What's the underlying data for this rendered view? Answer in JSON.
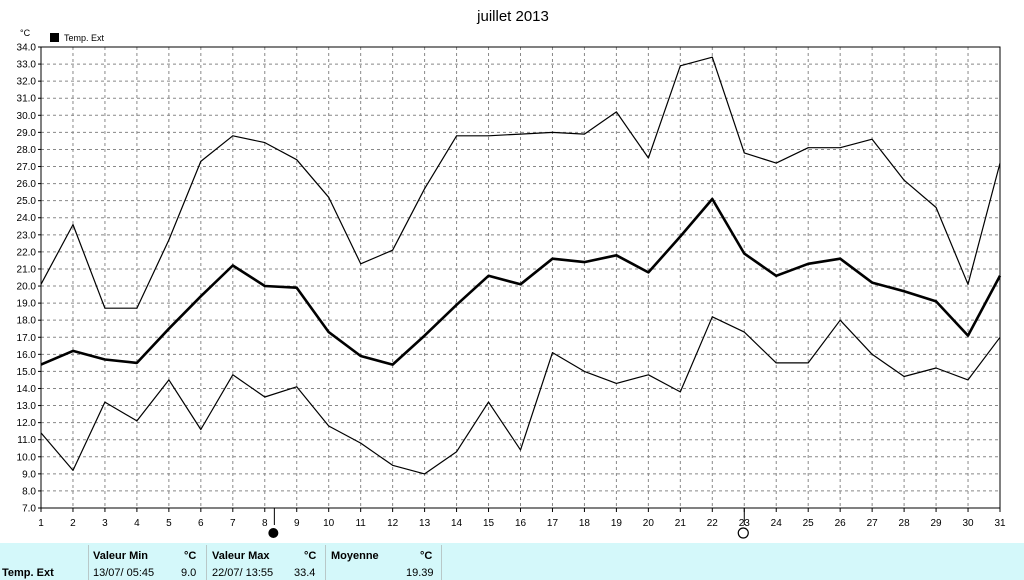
{
  "chart_data": {
    "type": "line",
    "title": "juillet 2013",
    "unit_label": "°C",
    "legend": {
      "label": "Temp. Ext",
      "color": "#000000"
    },
    "x": [
      1,
      2,
      3,
      4,
      5,
      6,
      7,
      8,
      9,
      10,
      11,
      12,
      13,
      14,
      15,
      16,
      17,
      18,
      19,
      20,
      21,
      22,
      23,
      24,
      25,
      26,
      27,
      28,
      29,
      30,
      31
    ],
    "ylim": [
      7.0,
      34.0
    ],
    "ytick_step": 1.0,
    "grid": true,
    "series": [
      {
        "role": "max",
        "stroke": 1.2,
        "values": [
          20.1,
          23.6,
          18.7,
          18.7,
          22.7,
          27.3,
          28.8,
          28.4,
          27.4,
          25.2,
          21.3,
          22.1,
          25.7,
          28.8,
          28.8,
          28.9,
          29.0,
          28.9,
          30.2,
          27.5,
          32.9,
          33.4,
          27.8,
          27.2,
          28.1,
          28.1,
          28.6,
          26.2,
          24.6,
          20.1,
          27.2
        ]
      },
      {
        "role": "mean",
        "stroke": 2.6,
        "values": [
          15.4,
          16.2,
          15.7,
          15.5,
          17.5,
          19.4,
          21.2,
          20.0,
          19.9,
          17.3,
          15.9,
          15.4,
          17.1,
          18.9,
          20.6,
          20.1,
          21.6,
          21.4,
          21.8,
          20.8,
          22.9,
          25.1,
          21.9,
          20.6,
          21.3,
          21.6,
          20.2,
          19.7,
          19.1,
          17.1,
          20.6
        ]
      },
      {
        "role": "min",
        "stroke": 1.2,
        "values": [
          11.4,
          9.2,
          13.2,
          12.1,
          14.5,
          11.6,
          14.8,
          13.5,
          14.1,
          11.8,
          10.8,
          9.5,
          9.0,
          10.3,
          13.2,
          10.4,
          16.1,
          15.0,
          14.3,
          14.8,
          13.8,
          18.2,
          17.3,
          15.5,
          15.5,
          18.0,
          16.0,
          14.7,
          15.2,
          14.5,
          17.0
        ]
      }
    ],
    "markers": [
      {
        "x": 8.3,
        "type": "filled-circle"
      },
      {
        "x": 23.0,
        "type": "open-circle"
      }
    ]
  },
  "stats": {
    "row_label": "Temp. Ext",
    "min": {
      "header": "Valeur Min",
      "unit": "°C",
      "datetime": "13/07/  05:45",
      "value": "9.0"
    },
    "max": {
      "header": "Valeur Max",
      "unit": "°C",
      "datetime": "22/07/  13:55",
      "value": "33.4"
    },
    "mean": {
      "header": "Moyenne",
      "unit": "°C",
      "value": "19.39"
    }
  }
}
